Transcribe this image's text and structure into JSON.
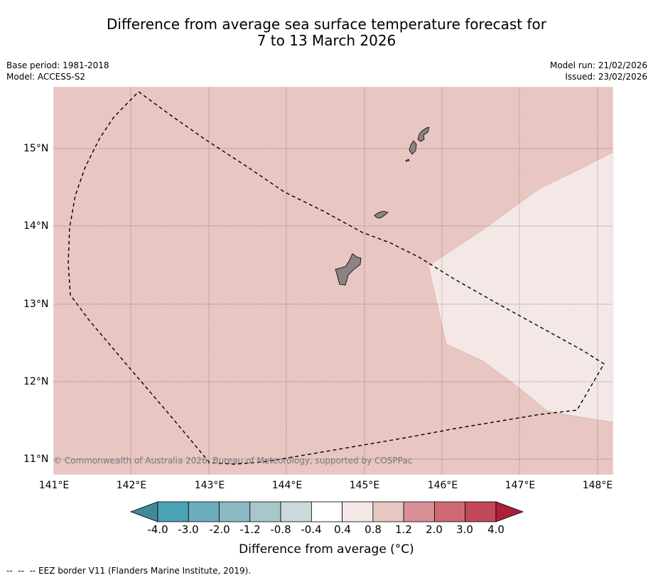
{
  "title": {
    "line1": "Difference from average sea surface temperature forecast for",
    "line2": "7 to 13 March 2026"
  },
  "meta": {
    "base_period": "Base period: 1981-2018",
    "model": "Model: ACCESS-S2",
    "model_run": "Model run: 21/02/2026",
    "issued": "Issued: 23/02/2026"
  },
  "map": {
    "lon_ticks": [
      "141°E",
      "142°E",
      "143°E",
      "144°E",
      "145°E",
      "146°E",
      "147°E",
      "148°E"
    ],
    "lat_ticks": [
      "15°N",
      "14°N",
      "13°N",
      "12°N",
      "11°N"
    ],
    "copyright": "© Commonwealth of Australia 2026, Bureau of Meteorology, supported by COSPPac",
    "colors": {
      "anomaly_0_4_to_0_8": "#e8c6c2",
      "anomaly_0_4_to_0_4": "#f4e8e7",
      "land": "#8c8282"
    }
  },
  "colorbar": {
    "labels": [
      "-4.0",
      "-3.0",
      "-2.0",
      "-1.2",
      "-0.8",
      "-0.4",
      "0.4",
      "0.8",
      "1.2",
      "2.0",
      "3.0",
      "4.0"
    ],
    "colors": [
      "#3f8a96",
      "#4aa4b5",
      "#6badbc",
      "#8cb8c3",
      "#a9c6ca",
      "#cbd9dc",
      "#ffffff",
      "#f4e8e7",
      "#e8c6c2",
      "#d98f96",
      "#cf6a75",
      "#c24a58",
      "#ae1f3a"
    ],
    "title": "Difference from average (°C)"
  },
  "footnote": "--  --  -- EEZ border V11 (Flanders Marine Institute, 2019)."
}
